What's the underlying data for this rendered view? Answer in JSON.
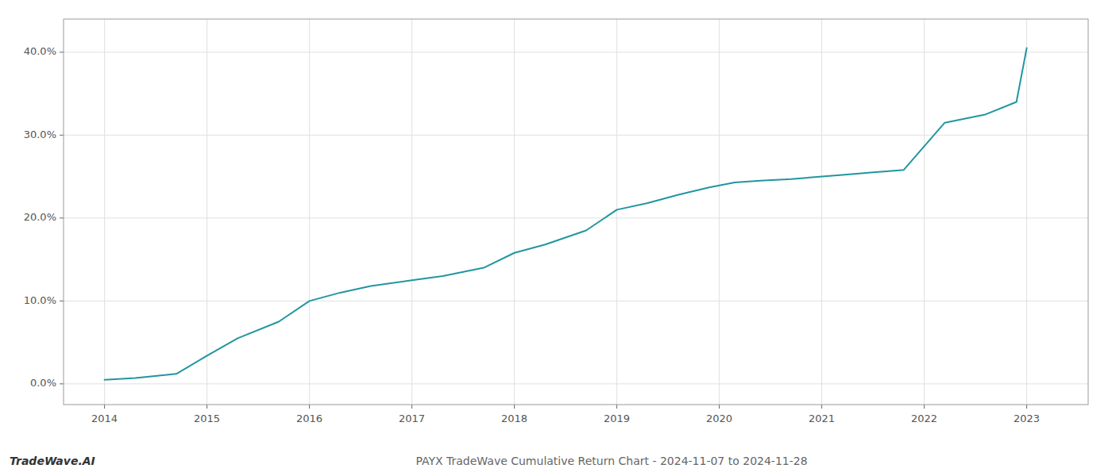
{
  "chart_data": {
    "type": "line",
    "title": "PAYX TradeWave Cumulative Return Chart - 2024-11-07 to 2024-11-28",
    "annotations": [
      "TradeWave.AI"
    ],
    "color": "#2196a0",
    "x": [
      2014.0,
      2014.3,
      2014.7,
      2015.0,
      2015.3,
      2015.7,
      2016.0,
      2016.3,
      2016.6,
      2017.0,
      2017.3,
      2017.7,
      2018.0,
      2018.3,
      2018.7,
      2019.0,
      2019.3,
      2019.6,
      2019.9,
      2020.15,
      2020.4,
      2020.7,
      2021.0,
      2021.2,
      2021.5,
      2021.8,
      2022.2,
      2022.6,
      2022.9,
      2023.0
    ],
    "values": [
      0.005,
      0.007,
      0.012,
      0.034,
      0.055,
      0.075,
      0.1,
      0.11,
      0.118,
      0.125,
      0.13,
      0.14,
      0.158,
      0.168,
      0.185,
      0.21,
      0.218,
      0.228,
      0.237,
      0.243,
      0.245,
      0.247,
      0.25,
      0.252,
      0.255,
      0.258,
      0.315,
      0.325,
      0.34,
      0.405
    ],
    "xlim": [
      2013.6,
      2023.6
    ],
    "ylim": [
      -0.025,
      0.44
    ],
    "xticks": [
      2014,
      2015,
      2016,
      2017,
      2018,
      2019,
      2020,
      2021,
      2022,
      2023
    ],
    "yticks": [
      {
        "value": 0.0,
        "label": "0.0%"
      },
      {
        "value": 0.1,
        "label": "10.0%"
      },
      {
        "value": 0.2,
        "label": "20.0%"
      },
      {
        "value": 0.3,
        "label": "30.0%"
      },
      {
        "value": 0.4,
        "label": "40.0%"
      }
    ],
    "grid": true
  }
}
